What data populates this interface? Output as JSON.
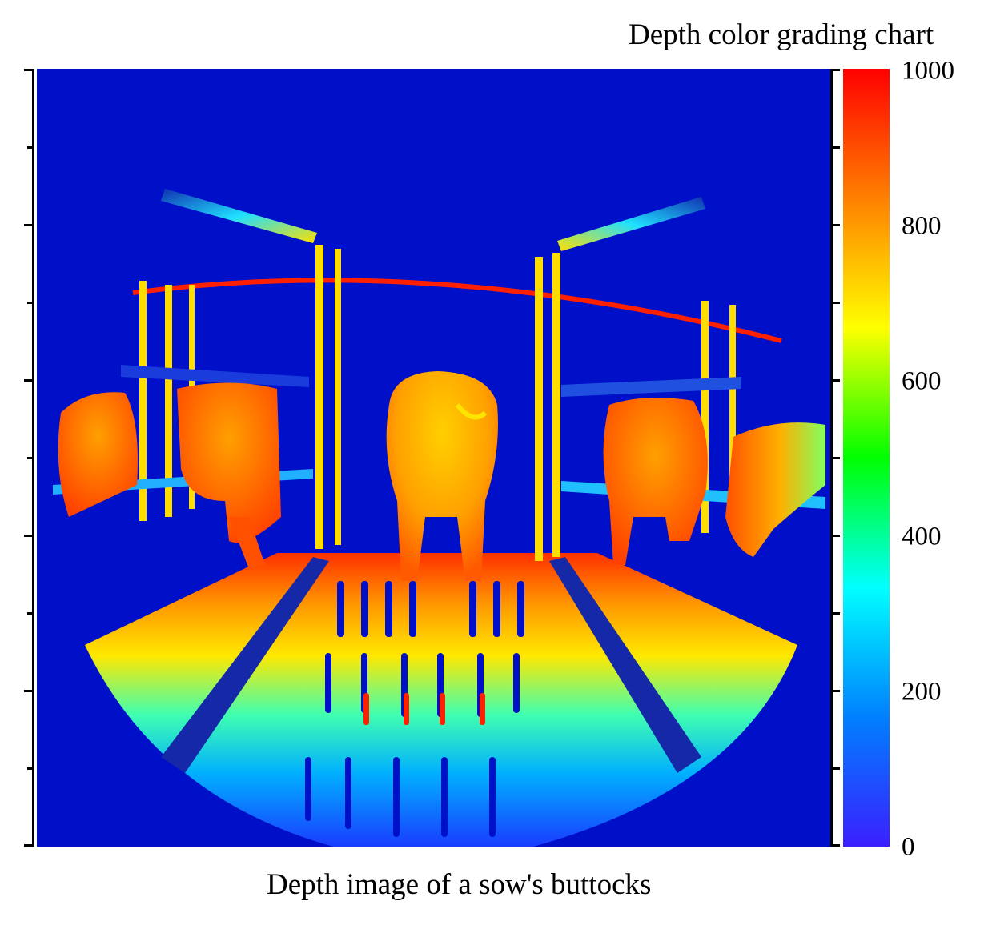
{
  "colorbar": {
    "title": "Depth color grading chart",
    "labels": [
      "1000",
      "800",
      "600",
      "400",
      "200",
      "0"
    ],
    "min": 0,
    "max": 1000,
    "colors": [
      "#ff0000",
      "#ff8000",
      "#ffff00",
      "#00ff00",
      "#00ffff",
      "#0080ff",
      "#3b1fff"
    ]
  },
  "image": {
    "caption": "Depth image of a sow's buttocks",
    "background_color": "#0010c8"
  }
}
